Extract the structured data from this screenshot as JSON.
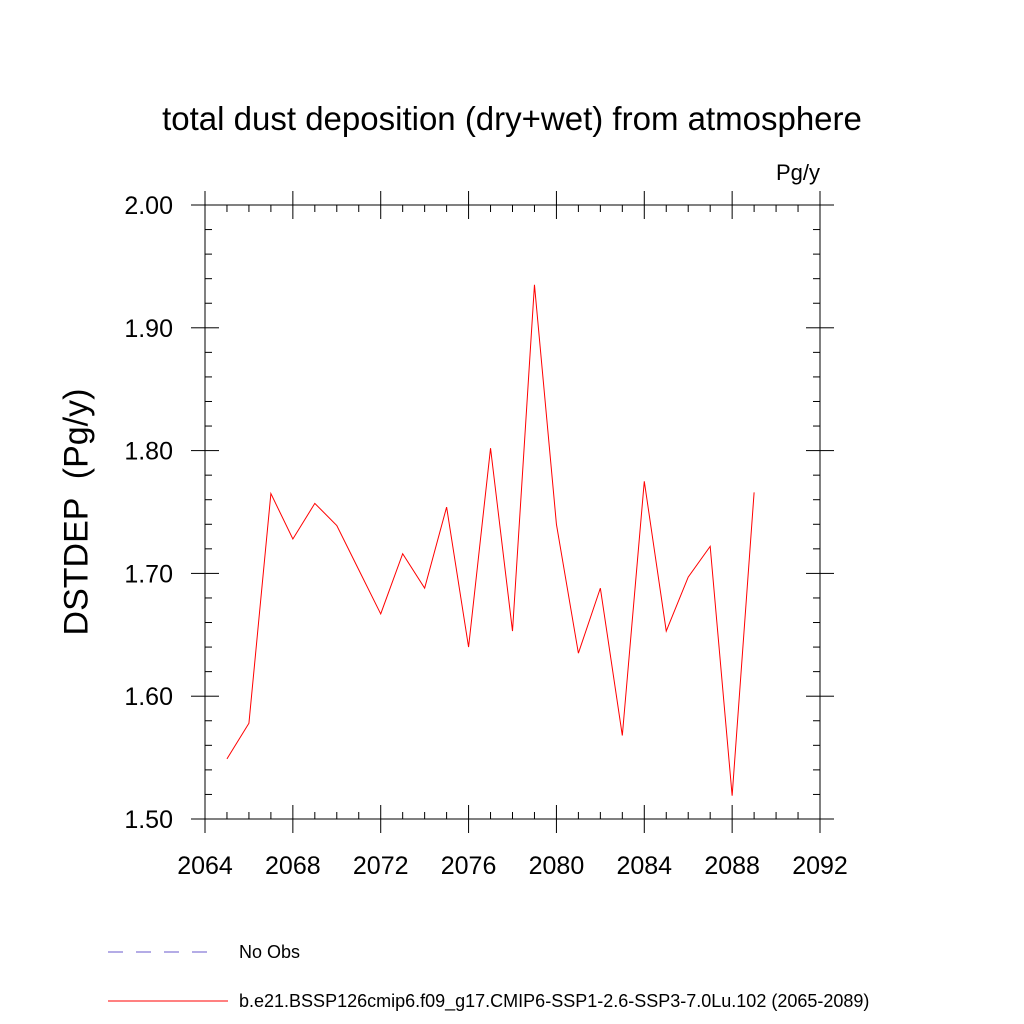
{
  "chart_data": {
    "type": "line",
    "title": "total dust deposition (dry+wet) from atmosphere",
    "unit_label": "Pg/y",
    "ylabel": "DSTDEP  (Pg/y)",
    "xlim": [
      2064,
      2092
    ],
    "ylim": [
      1.5,
      2.0
    ],
    "x_ticks": [
      "2064",
      "2068",
      "2072",
      "2076",
      "2080",
      "2084",
      "2088",
      "2092"
    ],
    "y_ticks": [
      "1.50",
      "1.60",
      "1.70",
      "1.80",
      "1.90",
      "2.00"
    ],
    "grid": false,
    "series": [
      {
        "name": "b.e21.BSSP126cmip6.f09_g17.CMIP6-SSP1-2.6-SSP3-7.0Lu.102 (2065-2089)",
        "color": "#ff0000",
        "x": [
          2065,
          2066,
          2067,
          2068,
          2069,
          2070,
          2071,
          2072,
          2073,
          2074,
          2075,
          2076,
          2077,
          2078,
          2079,
          2080,
          2081,
          2082,
          2083,
          2084,
          2085,
          2086,
          2087,
          2088,
          2089
        ],
        "values": [
          1.549,
          1.578,
          1.765,
          1.728,
          1.757,
          1.739,
          1.703,
          1.667,
          1.716,
          1.688,
          1.754,
          1.64,
          1.802,
          1.653,
          1.935,
          1.74,
          1.635,
          1.688,
          1.568,
          1.775,
          1.653,
          1.697,
          1.722,
          1.519,
          1.766
        ]
      }
    ],
    "legend": [
      {
        "label": "No Obs",
        "color": "#6a5acd",
        "style": "dashed"
      },
      {
        "label": "b.e21.BSSP126cmip6.f09_g17.CMIP6-SSP1-2.6-SSP3-7.0Lu.102 (2065-2089)",
        "color": "#ff0000",
        "style": "solid"
      }
    ],
    "legend_position": "bottom-left"
  }
}
